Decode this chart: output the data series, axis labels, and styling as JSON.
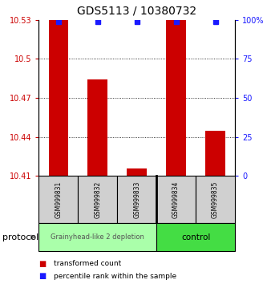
{
  "title": "GDS5113 / 10380732",
  "samples": [
    "GSM999831",
    "GSM999832",
    "GSM999833",
    "GSM999834",
    "GSM999835"
  ],
  "transformed_counts": [
    10.53,
    10.484,
    10.416,
    10.53,
    10.445
  ],
  "percentile_ranks": [
    99,
    99,
    99,
    99,
    99
  ],
  "ylim_left": [
    10.41,
    10.53
  ],
  "ylim_right": [
    0,
    100
  ],
  "yticks_left": [
    10.41,
    10.44,
    10.47,
    10.5,
    10.53
  ],
  "yticks_right": [
    0,
    25,
    50,
    75,
    100
  ],
  "bar_color": "#cc0000",
  "dot_color": "#1a1aff",
  "bar_width": 0.5,
  "group0_label": "Grainyhead-like 2 depletion",
  "group0_color": "#aaffaa",
  "group1_label": "control",
  "group1_color": "#44dd44",
  "protocol_label": "protocol",
  "legend_bar_label": "transformed count",
  "legend_dot_label": "percentile rank within the sample",
  "title_fontsize": 10,
  "tick_fontsize": 7,
  "sample_fontsize": 5.5,
  "group_fontsize": 6,
  "legend_fontsize": 6.5,
  "protocol_fontsize": 8
}
